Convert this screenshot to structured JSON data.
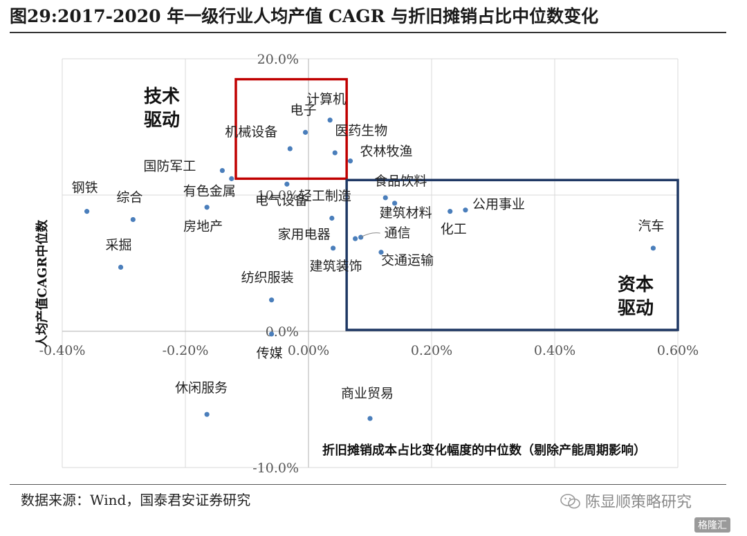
{
  "title": "图29:2017-2020 年一级行业人均产值 CAGR 与折旧摊销占比中位数变化",
  "source": "数据来源：Wind，国泰君安证券研究",
  "watermark": "陈显顺策略研究",
  "logo": "格隆汇",
  "chart_data": {
    "type": "scatter",
    "xlabel": "折旧摊销成本占比变化幅度的中位数（剔除产能周期影响）",
    "ylabel": "人均产值CAGR中位数",
    "xlim": [
      -0.4,
      0.6
    ],
    "ylim": [
      -10.0,
      20.0
    ],
    "x_unit": "%",
    "y_unit": "%",
    "x_ticks": [
      "-0.40%",
      "-0.20%",
      "0.00%",
      "0.20%",
      "0.40%",
      "0.60%"
    ],
    "y_ticks": [
      "20.0%",
      "10.0%",
      "0.0%",
      "-10.0%"
    ],
    "grid": true,
    "marker_color": "#4a7ebb",
    "points": [
      {
        "name": "计算机",
        "x": 0.035,
        "y": 15.5
      },
      {
        "name": "电子",
        "x": -0.005,
        "y": 14.6
      },
      {
        "name": "医药生物",
        "x": 0.043,
        "y": 13.1
      },
      {
        "name": "机械设备",
        "x": -0.03,
        "y": 13.4
      },
      {
        "name": "农林牧渔",
        "x": 0.068,
        "y": 12.5
      },
      {
        "name": "电气设备",
        "x": -0.035,
        "y": 10.8
      },
      {
        "name": "国防军工",
        "x": -0.14,
        "y": 11.8
      },
      {
        "name": "有色金属",
        "x": -0.125,
        "y": 11.2
      },
      {
        "name": "钢铁",
        "x": -0.36,
        "y": 8.8
      },
      {
        "name": "综合",
        "x": -0.285,
        "y": 8.2
      },
      {
        "name": "房地产",
        "x": -0.165,
        "y": 9.1
      },
      {
        "name": "采掘",
        "x": -0.305,
        "y": 4.7
      },
      {
        "name": "轻工制造",
        "x": 0.038,
        "y": 8.3
      },
      {
        "name": "食品饮料",
        "x": 0.125,
        "y": 9.8
      },
      {
        "name": "建筑材料",
        "x": 0.14,
        "y": 9.4
      },
      {
        "name": "公用事业",
        "x": 0.255,
        "y": 8.9
      },
      {
        "name": "化工",
        "x": 0.23,
        "y": 8.8
      },
      {
        "name": "通信",
        "x": 0.085,
        "y": 6.9
      },
      {
        "name": "家用电器",
        "x": 0.076,
        "y": 6.8
      },
      {
        "name": "建筑装饰",
        "x": 0.04,
        "y": 6.1
      },
      {
        "name": "交通运输",
        "x": 0.118,
        "y": 5.8
      },
      {
        "name": "汽车",
        "x": 0.56,
        "y": 6.1
      },
      {
        "name": "纺织服装",
        "x": -0.06,
        "y": 2.3
      },
      {
        "name": "传媒",
        "x": -0.06,
        "y": -0.2
      },
      {
        "name": "休闲服务",
        "x": -0.165,
        "y": -6.1
      },
      {
        "name": "商业贸易",
        "x": 0.1,
        "y": -6.4
      }
    ],
    "regions": [
      {
        "label_lines": [
          "技术",
          "驱动"
        ],
        "x": [
          -0.118,
          0.062
        ],
        "y": [
          11.2,
          18.5
        ],
        "color": "#c00000"
      },
      {
        "label_lines": [
          "资本",
          "驱动"
        ],
        "x": [
          0.062,
          0.6
        ],
        "y": [
          0.1,
          11.1
        ],
        "color": "#1f3864"
      }
    ]
  }
}
